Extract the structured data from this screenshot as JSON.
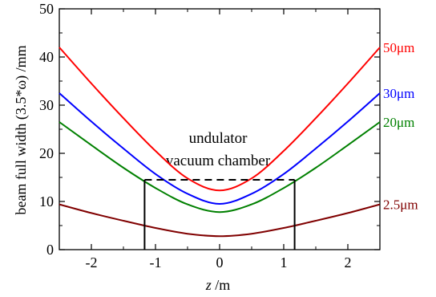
{
  "chart_data": {
    "type": "line",
    "xlabel": {
      "var": "z",
      "unit": " /m"
    },
    "ylabel": "beam full width (3.5*ω) /mm",
    "xlim": [
      -2.5,
      2.5
    ],
    "ylim": [
      0,
      50
    ],
    "xticks": [
      -2,
      -1,
      0,
      1,
      2
    ],
    "yticks": [
      0,
      10,
      20,
      30,
      40,
      50
    ],
    "grid": false,
    "legend": "inline labels at right end of each curve",
    "series": [
      {
        "name": "50μm",
        "color": "#ff0000",
        "x": [
          -2.5,
          -2.0,
          -1.5,
          -1.0,
          -0.5,
          0,
          0.5,
          1.0,
          1.5,
          2.0,
          2.5
        ],
        "values": [
          42.0,
          34.5,
          27.3,
          20.5,
          14.8,
          12.3,
          14.8,
          20.5,
          27.3,
          34.5,
          42.0
        ]
      },
      {
        "name": "30μm",
        "color": "#0000ff",
        "x": [
          -2.5,
          -2.0,
          -1.5,
          -1.0,
          -0.5,
          0,
          0.5,
          1.0,
          1.5,
          2.0,
          2.5
        ],
        "values": [
          32.5,
          26.6,
          21.0,
          15.7,
          11.6,
          9.5,
          11.6,
          15.7,
          21.0,
          26.6,
          32.5
        ]
      },
      {
        "name": "20μm",
        "color": "#008000",
        "x": [
          -2.5,
          -2.0,
          -1.5,
          -1.0,
          -0.5,
          0,
          0.5,
          1.0,
          1.5,
          2.0,
          2.5
        ],
        "values": [
          26.5,
          21.7,
          17.0,
          12.8,
          9.4,
          7.8,
          9.4,
          12.8,
          17.0,
          21.7,
          26.5
        ]
      },
      {
        "name": "2.5μm",
        "color": "#800000",
        "x": [
          -2.5,
          -2.0,
          -1.5,
          -1.0,
          -0.5,
          0,
          0.5,
          1.0,
          1.5,
          2.0,
          2.5
        ],
        "values": [
          9.4,
          7.6,
          6.0,
          4.5,
          3.3,
          2.8,
          3.3,
          4.5,
          6.0,
          7.6,
          9.4
        ]
      }
    ],
    "annotation": {
      "lines": [
        "undulator",
        "vacuum chamber"
      ],
      "chamber": {
        "z_start": -1.17,
        "z_end": 1.17,
        "height": 14.5
      }
    }
  }
}
